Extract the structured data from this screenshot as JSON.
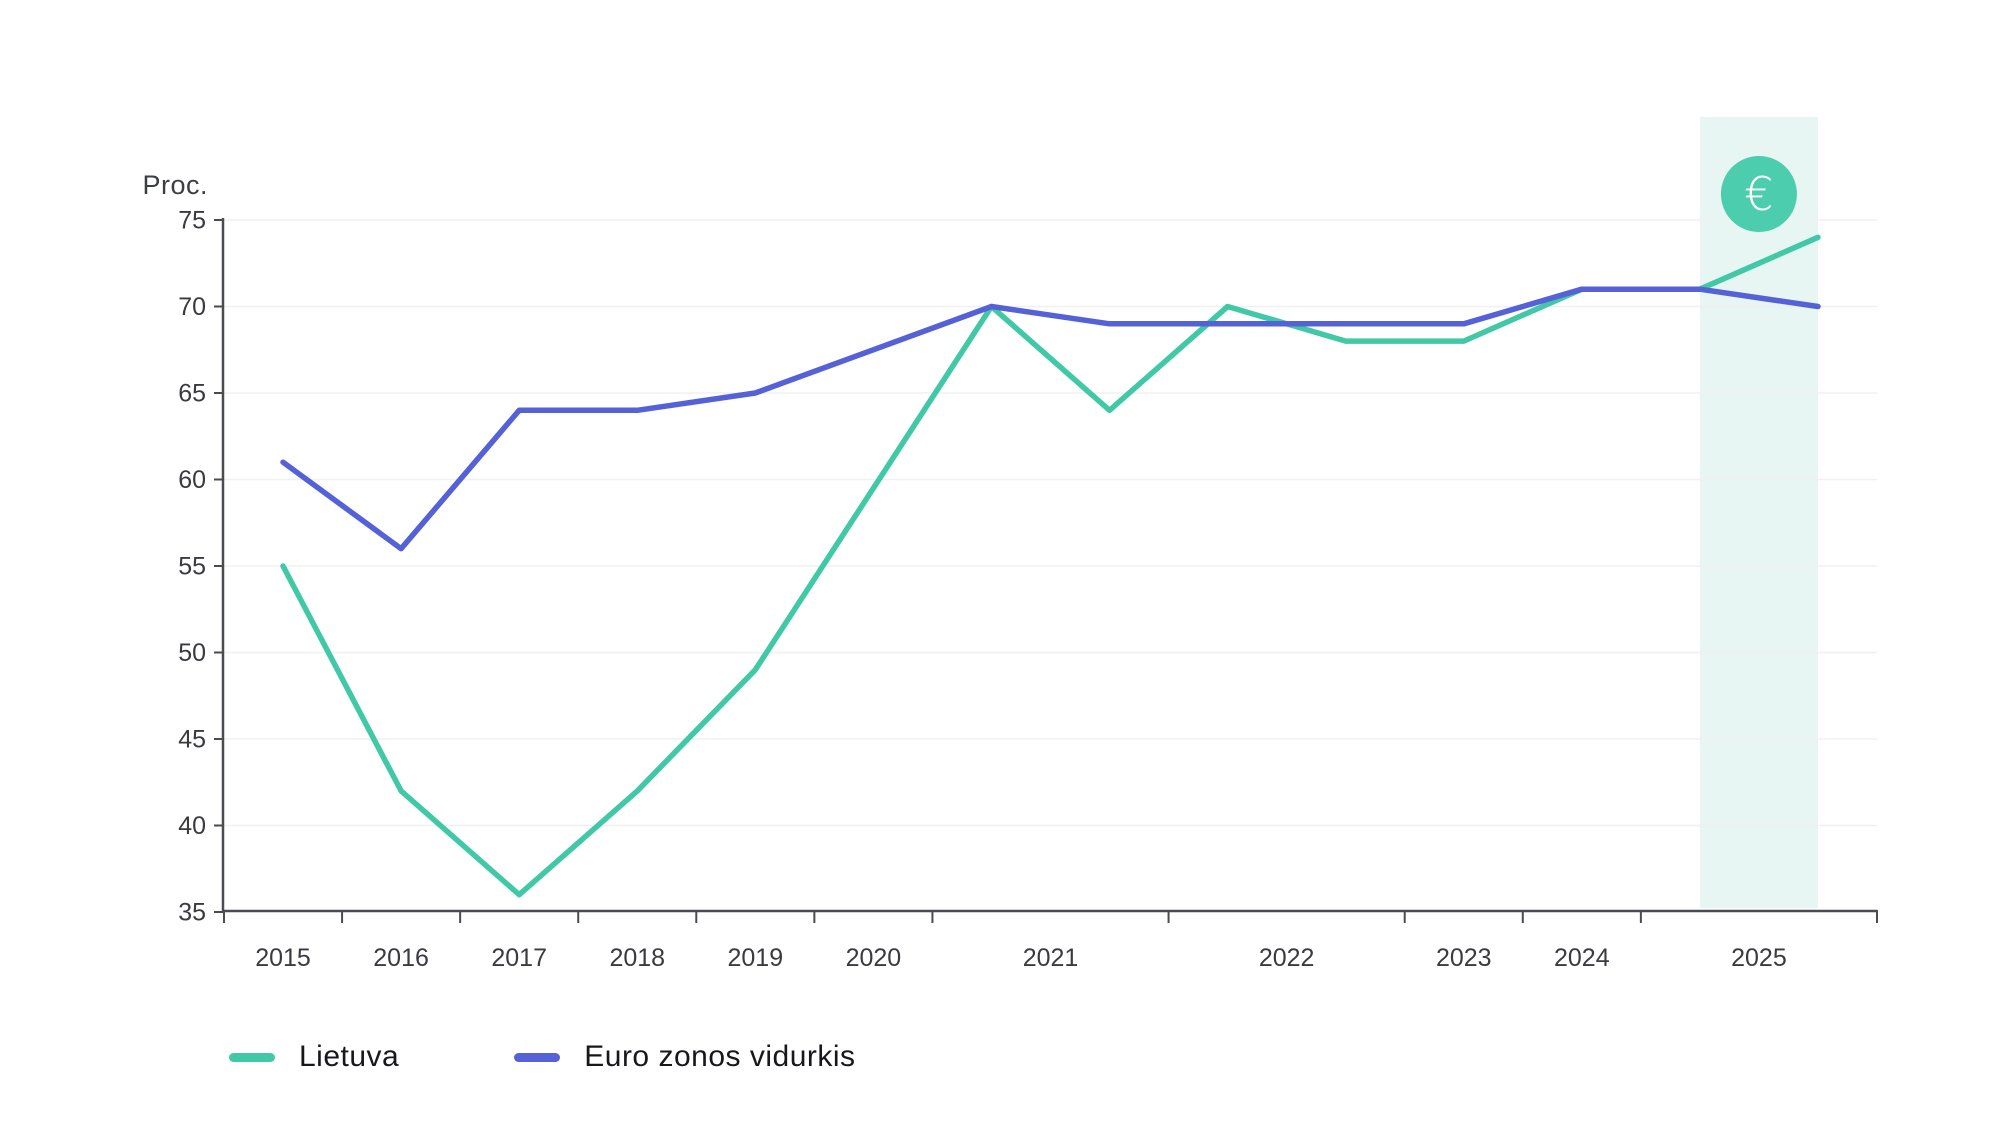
{
  "chart_data": {
    "type": "line",
    "title": "",
    "ylabel": "Proc.",
    "xlabel": "",
    "ylim": [
      35,
      75
    ],
    "y_ticks": [
      35,
      40,
      45,
      50,
      55,
      60,
      65,
      70,
      75
    ],
    "grid": "horizontal",
    "legend_position": "bottom-left",
    "x_axis_note": "survey waves at half-year index steps; index 0 = 2015 wave",
    "year_labels": [
      {
        "label": "2015",
        "idx": 0
      },
      {
        "label": "2016",
        "idx": 2
      },
      {
        "label": "2017",
        "idx": 4
      },
      {
        "label": "2018",
        "idx": 6
      },
      {
        "label": "2019",
        "idx": 8
      },
      {
        "label": "2020",
        "idx": 10
      },
      {
        "label": "2021",
        "idx": 13
      },
      {
        "label": "2022",
        "idx": 17
      },
      {
        "label": "2023",
        "idx": 20
      },
      {
        "label": "2024",
        "idx": 22
      },
      {
        "label": "2025",
        "idx": 25
      }
    ],
    "x_tick_marks_idx": [
      -1,
      1,
      3,
      5,
      7,
      9,
      11,
      15,
      19,
      21,
      23,
      27
    ],
    "series": [
      {
        "name": "Lietuva",
        "color": "#41c9a7",
        "points": [
          [
            0,
            55
          ],
          [
            2,
            42
          ],
          [
            4,
            36
          ],
          [
            6,
            42
          ],
          [
            8,
            49
          ],
          [
            12,
            70
          ],
          [
            14,
            64
          ],
          [
            16,
            70
          ],
          [
            18,
            68
          ],
          [
            20,
            68
          ],
          [
            22,
            71
          ],
          [
            24,
            71
          ],
          [
            26,
            74
          ]
        ]
      },
      {
        "name": "Euro zonos vidurkis",
        "color": "#5561d6",
        "points": [
          [
            0,
            61
          ],
          [
            2,
            56
          ],
          [
            4,
            64
          ],
          [
            6,
            64
          ],
          [
            8,
            65
          ],
          [
            12,
            70
          ],
          [
            14,
            69
          ],
          [
            20,
            69
          ],
          [
            22,
            71
          ],
          [
            24,
            71
          ],
          [
            26,
            70
          ]
        ]
      }
    ],
    "highlight_band": {
      "from_idx": 24,
      "to_idx": 26,
      "color": "#e7f6f2"
    },
    "euro_badge": {
      "symbol": "€",
      "circle_color": "#4bcdae",
      "symbol_color": "#ffffff",
      "at_idx": 25
    },
    "colors": {
      "axis": "#4b4b52",
      "gridline": "#f0f0f1",
      "tick_text": "#3a3a41"
    }
  },
  "legend": {
    "items": [
      {
        "label": "Lietuva",
        "color": "#41c9a7"
      },
      {
        "label": "Euro zonos vidurkis",
        "color": "#5561d6"
      }
    ]
  }
}
